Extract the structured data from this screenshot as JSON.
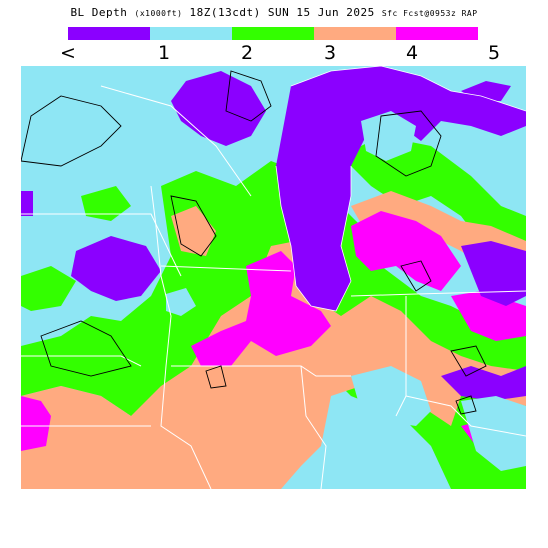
{
  "header": {
    "product": "BL Depth",
    "units": "(x1000ft)",
    "valid": "18Z(13cdt) SUN 15 Jun 2025",
    "init": "Sfc Fcst@0953z RAP"
  },
  "legend": {
    "colors": [
      "#8b00ff",
      "#8ee6f4",
      "#33ff00",
      "#ffaa80",
      "#ff00ff"
    ],
    "labels": [
      "<",
      "1",
      "2",
      "3",
      "4",
      "5"
    ]
  },
  "map": {
    "field_colors": {
      "purple": "#8b00ff",
      "cyan": "#8ee6f4",
      "green": "#33ff00",
      "orange": "#ffaa80",
      "magenta": "#ff00ff"
    },
    "boundary_color": "#ffffff",
    "contour_color": "#000000"
  }
}
